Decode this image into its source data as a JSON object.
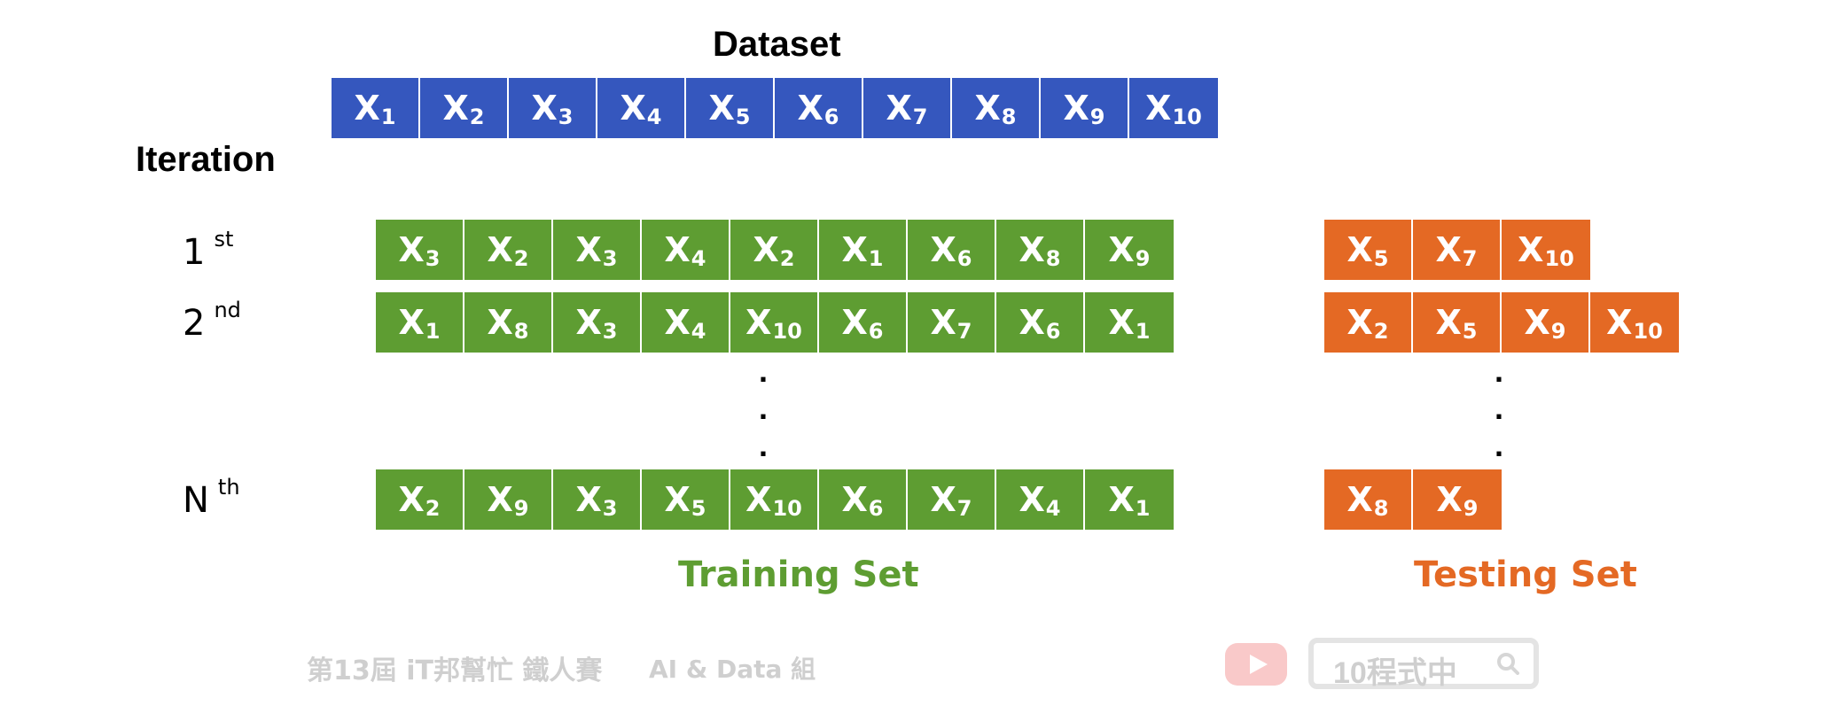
{
  "dataset": {
    "title": "Dataset",
    "cells": [
      {
        "base": "X",
        "sub": "1"
      },
      {
        "base": "X",
        "sub": "2"
      },
      {
        "base": "X",
        "sub": "3"
      },
      {
        "base": "X",
        "sub": "4"
      },
      {
        "base": "X",
        "sub": "5"
      },
      {
        "base": "X",
        "sub": "6"
      },
      {
        "base": "X",
        "sub": "7"
      },
      {
        "base": "X",
        "sub": "8"
      },
      {
        "base": "X",
        "sub": "9"
      },
      {
        "base": "X",
        "sub": "10"
      }
    ],
    "color": "#3557be"
  },
  "iteration_title": "Iteration",
  "iterations": [
    {
      "label": "1",
      "suffix": "st",
      "training": [
        {
          "base": "X",
          "sub": "3"
        },
        {
          "base": "X",
          "sub": "2"
        },
        {
          "base": "X",
          "sub": "3"
        },
        {
          "base": "X",
          "sub": "4"
        },
        {
          "base": "X",
          "sub": "2"
        },
        {
          "base": "X",
          "sub": "1"
        },
        {
          "base": "X",
          "sub": "6"
        },
        {
          "base": "X",
          "sub": "8"
        },
        {
          "base": "X",
          "sub": "9"
        }
      ],
      "testing": [
        {
          "base": "X",
          "sub": "5"
        },
        {
          "base": "X",
          "sub": "7"
        },
        {
          "base": "X",
          "sub": "10"
        }
      ]
    },
    {
      "label": "2",
      "suffix": "nd",
      "training": [
        {
          "base": "X",
          "sub": "1"
        },
        {
          "base": "X",
          "sub": "8"
        },
        {
          "base": "X",
          "sub": "3"
        },
        {
          "base": "X",
          "sub": "4"
        },
        {
          "base": "X",
          "sub": "10"
        },
        {
          "base": "X",
          "sub": "6"
        },
        {
          "base": "X",
          "sub": "7"
        },
        {
          "base": "X",
          "sub": "6"
        },
        {
          "base": "X",
          "sub": "1"
        }
      ],
      "testing": [
        {
          "base": "X",
          "sub": "2"
        },
        {
          "base": "X",
          "sub": "5"
        },
        {
          "base": "X",
          "sub": "9"
        },
        {
          "base": "X",
          "sub": "10"
        }
      ]
    },
    {
      "label": "N",
      "suffix": "th",
      "training": [
        {
          "base": "X",
          "sub": "2"
        },
        {
          "base": "X",
          "sub": "9"
        },
        {
          "base": "X",
          "sub": "3"
        },
        {
          "base": "X",
          "sub": "5"
        },
        {
          "base": "X",
          "sub": "10"
        },
        {
          "base": "X",
          "sub": "6"
        },
        {
          "base": "X",
          "sub": "7"
        },
        {
          "base": "X",
          "sub": "4"
        },
        {
          "base": "X",
          "sub": "1"
        }
      ],
      "testing": [
        {
          "base": "X",
          "sub": "8"
        },
        {
          "base": "X",
          "sub": "9"
        }
      ]
    }
  ],
  "ellipsis": ".\n.\n.",
  "training_label": "Training Set",
  "testing_label": "Testing Set",
  "colors": {
    "training": "#5e9d32",
    "testing": "#e46924"
  },
  "watermark": {
    "event": "第13屆 iT邦幫忙 鐵人賽",
    "category": "AI & Data 組",
    "channel": "10程式中",
    "icons": [
      "youtube-icon",
      "search-icon"
    ]
  }
}
